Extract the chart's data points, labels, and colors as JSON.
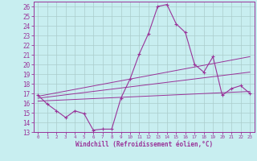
{
  "xlabel": "Windchill (Refroidissement éolien,°C)",
  "bg_color": "#c8eef0",
  "grid_color": "#aacccc",
  "line_color": "#993399",
  "tick_color": "#993399",
  "xlim": [
    -0.5,
    23.5
  ],
  "ylim": [
    13,
    26.5
  ],
  "yticks": [
    13,
    14,
    15,
    16,
    17,
    18,
    19,
    20,
    21,
    22,
    23,
    24,
    25,
    26
  ],
  "xticks": [
    0,
    1,
    2,
    3,
    4,
    5,
    6,
    7,
    8,
    9,
    10,
    11,
    12,
    13,
    14,
    15,
    16,
    17,
    18,
    19,
    20,
    21,
    22,
    23
  ],
  "main_y": [
    16.8,
    15.9,
    15.2,
    14.5,
    15.2,
    14.9,
    13.2,
    13.3,
    13.3,
    16.5,
    18.5,
    21.1,
    23.2,
    26.0,
    26.2,
    24.2,
    23.3,
    20.0,
    19.2,
    20.8,
    16.8,
    17.5,
    17.8,
    17.0
  ],
  "trend1_x": [
    0,
    23
  ],
  "trend1_y": [
    16.7,
    20.8
  ],
  "trend2_x": [
    0,
    23
  ],
  "trend2_y": [
    16.5,
    19.2
  ],
  "trend3_x": [
    0,
    23
  ],
  "trend3_y": [
    16.2,
    17.2
  ]
}
